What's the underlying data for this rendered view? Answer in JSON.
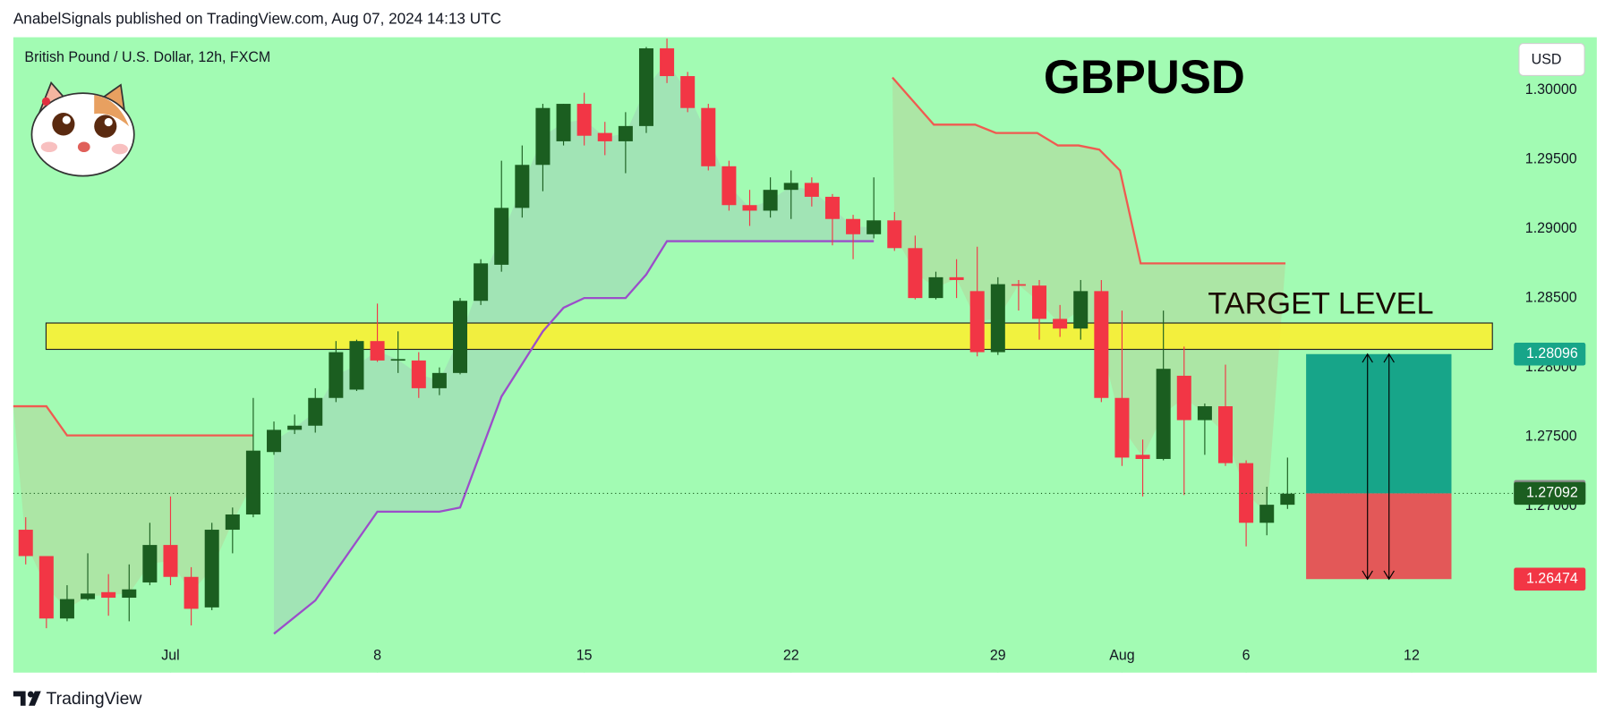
{
  "chart_data": {
    "type": "candlestick",
    "header": "AnabelSignals published on TradingView.com, Aug 07, 2024 14:13 UTC",
    "subtitle": "British Pound / U.S. Dollar, 12h, FXCM",
    "title": "GBPUSD",
    "annotation": "TARGET LEVEL",
    "currency": "USD",
    "brand": "TradingView",
    "up_color": "#1b5e20",
    "down_color": "#f23645",
    "background": "#a2fbb3",
    "candles": {
      "open": [
        1.2683,
        1.2664,
        1.2619,
        1.2633,
        1.2638,
        1.2634,
        1.2645,
        1.2672,
        1.2649,
        1.2627,
        1.2683,
        1.2694,
        1.2739,
        1.2755,
        1.2758,
        1.2778,
        1.2784,
        1.2819,
        1.2805,
        1.2805,
        1.2785,
        1.2796,
        1.2848,
        1.2874,
        1.2915,
        1.2946,
        1.2963,
        1.299,
        1.2969,
        1.2963,
        1.2974,
        1.303,
        1.301,
        1.2987,
        1.2945,
        1.2917,
        1.2913,
        1.2928,
        1.2933,
        1.2923,
        1.2907,
        1.2896,
        1.2906,
        1.2886,
        1.285,
        1.2865,
        1.2855,
        1.2811,
        1.286,
        1.2859,
        1.2835,
        1.2828,
        1.2855,
        1.2778,
        1.2737,
        1.2734,
        1.2794,
        1.2762,
        1.2772,
        1.2731,
        1.2688,
        1.2701
      ],
      "high": [
        1.2692,
        1.2664,
        1.2643,
        1.2666,
        1.2651,
        1.2658,
        1.2688,
        1.2707,
        1.2656,
        1.2688,
        1.2699,
        1.2778,
        1.2761,
        1.2766,
        1.2785,
        1.2819,
        1.282,
        1.2846,
        1.2826,
        1.2811,
        1.28,
        1.285,
        1.2878,
        1.2949,
        1.296,
        1.299,
        1.299,
        1.2998,
        1.2977,
        1.2984,
        1.3031,
        1.3037,
        1.3013,
        1.299,
        1.2949,
        1.2928,
        1.2937,
        1.2942,
        1.2937,
        1.2925,
        1.291,
        1.2937,
        1.2912,
        1.2895,
        1.2869,
        1.2878,
        1.2887,
        1.2865,
        1.2863,
        1.2863,
        1.2845,
        1.2863,
        1.2863,
        1.2841,
        1.2748,
        1.2841,
        1.2815,
        1.2774,
        1.2802,
        1.2733,
        1.2714,
        1.2735
      ],
      "low": [
        1.2658,
        1.2612,
        1.2617,
        1.2632,
        1.2621,
        1.2617,
        1.2643,
        1.2643,
        1.2614,
        1.2625,
        1.2666,
        1.2692,
        1.2737,
        1.2752,
        1.2753,
        1.2775,
        1.2783,
        1.2804,
        1.2796,
        1.2778,
        1.278,
        1.2795,
        1.2845,
        1.2869,
        1.2908,
        1.2927,
        1.296,
        1.296,
        1.2953,
        1.294,
        1.2969,
        1.3005,
        1.2984,
        1.2942,
        1.2913,
        1.2902,
        1.2908,
        1.2907,
        1.2916,
        1.2888,
        1.2878,
        1.2893,
        1.2884,
        1.2849,
        1.2849,
        1.285,
        1.2808,
        1.2809,
        1.2841,
        1.282,
        1.2822,
        1.282,
        1.2775,
        1.2729,
        1.2707,
        1.2733,
        1.2708,
        1.2737,
        1.2729,
        1.2671,
        1.2679,
        1.2698
      ],
      "close": [
        1.2664,
        1.2619,
        1.2633,
        1.2637,
        1.2634,
        1.264,
        1.2672,
        1.2649,
        1.2626,
        1.2683,
        1.2694,
        1.274,
        1.2755,
        1.2758,
        1.2778,
        1.2811,
        1.2819,
        1.2805,
        1.2806,
        1.2785,
        1.2796,
        1.2848,
        1.2875,
        1.2915,
        1.2946,
        1.2987,
        1.299,
        1.2967,
        1.2963,
        1.2974,
        1.303,
        1.301,
        1.2987,
        1.2945,
        1.2917,
        1.2913,
        1.2928,
        1.2933,
        1.2923,
        1.2907,
        1.2896,
        1.2906,
        1.2886,
        1.285,
        1.2865,
        1.2863,
        1.2811,
        1.286,
        1.2859,
        1.2835,
        1.2828,
        1.2855,
        1.2778,
        1.2735,
        1.2734,
        1.2799,
        1.2762,
        1.2772,
        1.2731,
        1.2688,
        1.2701,
        1.2709
      ]
    },
    "lines": [
      {
        "color": "#f05a50",
        "x": [
          -0.6,
          1,
          2,
          11
        ],
        "values": [
          1.2772,
          1.2772,
          1.2751,
          1.2751
        ]
      },
      {
        "color": "#f05a50",
        "x": [
          41.9,
          43.9,
          45.9,
          46.9,
          48.9,
          49.9,
          50.9,
          51.9,
          52.9,
          53.9,
          60.9
        ],
        "values": [
          1.3009,
          1.2975,
          1.2975,
          1.2969,
          1.2969,
          1.296,
          1.296,
          1.2957,
          1.2942,
          1.2875,
          1.2875
        ]
      },
      {
        "color": "#9b4dca",
        "x": [
          12,
          14,
          17,
          20,
          21,
          23,
          25,
          26,
          27,
          29,
          30,
          31,
          41
        ],
        "values": [
          1.2608,
          1.2632,
          1.2696,
          1.2696,
          1.2699,
          1.2779,
          1.2826,
          1.2843,
          1.285,
          1.285,
          1.2867,
          1.2891,
          1.2891
        ]
      }
    ],
    "target_zone": {
      "values": [
        1.2813,
        1.2832
      ],
      "color": "#fff02a"
    },
    "position": {
      "target": 1.28096,
      "entry": 1.27092,
      "stop": 1.26474,
      "profit_color": "#17a589",
      "loss_color": "#e35858"
    },
    "prev_price": 1.27106,
    "xlim": [
      -0.6,
      71.4
    ],
    "xticks": [
      {
        "value": 7,
        "label": "Jul"
      },
      {
        "value": 17,
        "label": "8"
      },
      {
        "value": 27,
        "label": "15"
      },
      {
        "value": 37,
        "label": "22"
      },
      {
        "value": 47,
        "label": "29"
      },
      {
        "value": 53,
        "label": "Aug"
      },
      {
        "value": 59,
        "label": "6"
      },
      {
        "value": 67,
        "label": "12"
      }
    ],
    "ylim": [
      1.258,
      1.3038
    ],
    "yticks": [
      {
        "value": 1.27,
        "label": "1.27000"
      },
      {
        "value": 1.275,
        "label": "1.27500"
      },
      {
        "value": 1.28,
        "label": "1.28000"
      },
      {
        "value": 1.285,
        "label": "1.28500"
      },
      {
        "value": 1.29,
        "label": "1.29000"
      },
      {
        "value": 1.295,
        "label": "1.29500"
      },
      {
        "value": 1.3,
        "label": "1.30000"
      }
    ]
  }
}
